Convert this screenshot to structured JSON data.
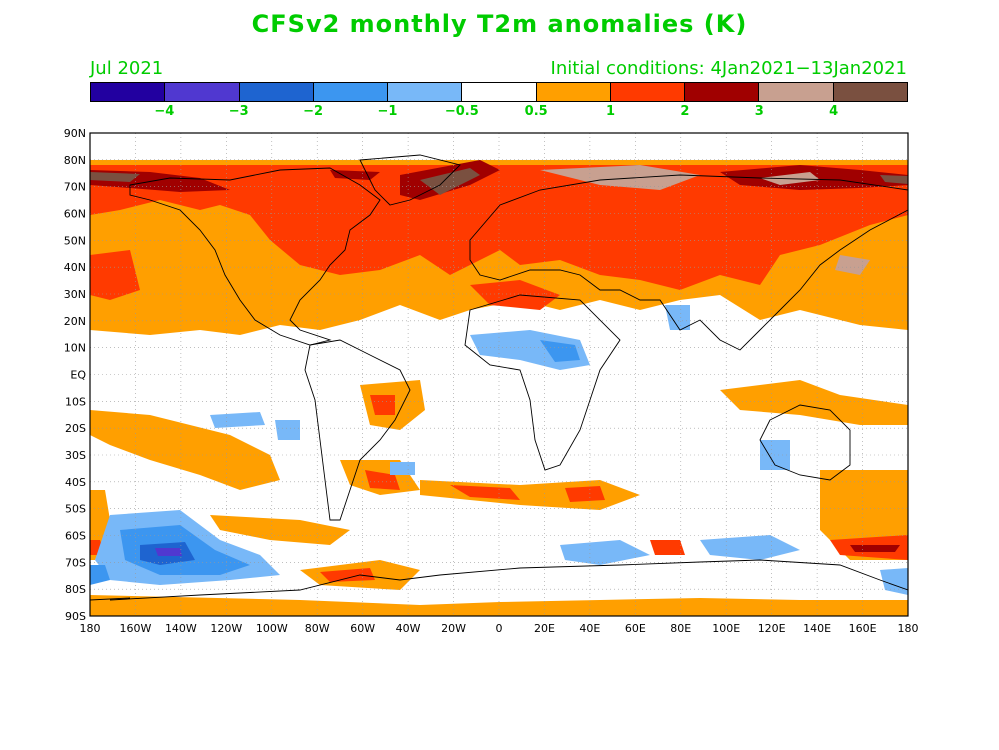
{
  "title": "CFSv2 monthly T2m anomalies (K)",
  "valid_month": "Jul 2021",
  "initial_conditions": "Initial conditions: 4Jan2021−13Jan2021",
  "colorbar": {
    "colors": [
      "#2200a0",
      "#5038d0",
      "#1e64d0",
      "#3c96f0",
      "#78b8f8",
      "#ffffff",
      "#ff9f00",
      "#ff3a00",
      "#a00000",
      "#c8a090",
      "#7a5040"
    ],
    "tick_labels": [
      "−4",
      "−3",
      "−2",
      "−1",
      "−0.5",
      "0.5",
      "1",
      "2",
      "3",
      "4"
    ]
  },
  "lat_labels": [
    "90N",
    "80N",
    "70N",
    "60N",
    "50N",
    "40N",
    "30N",
    "20N",
    "10N",
    "EQ",
    "10S",
    "20S",
    "30S",
    "40S",
    "50S",
    "60S",
    "70S",
    "80S",
    "90S"
  ],
  "lon_labels": [
    "180",
    "160W",
    "140W",
    "120W",
    "100W",
    "80W",
    "60W",
    "40W",
    "20W",
    "0",
    "20E",
    "40E",
    "60E",
    "80E",
    "100E",
    "120E",
    "140E",
    "160E",
    "180"
  ]
}
